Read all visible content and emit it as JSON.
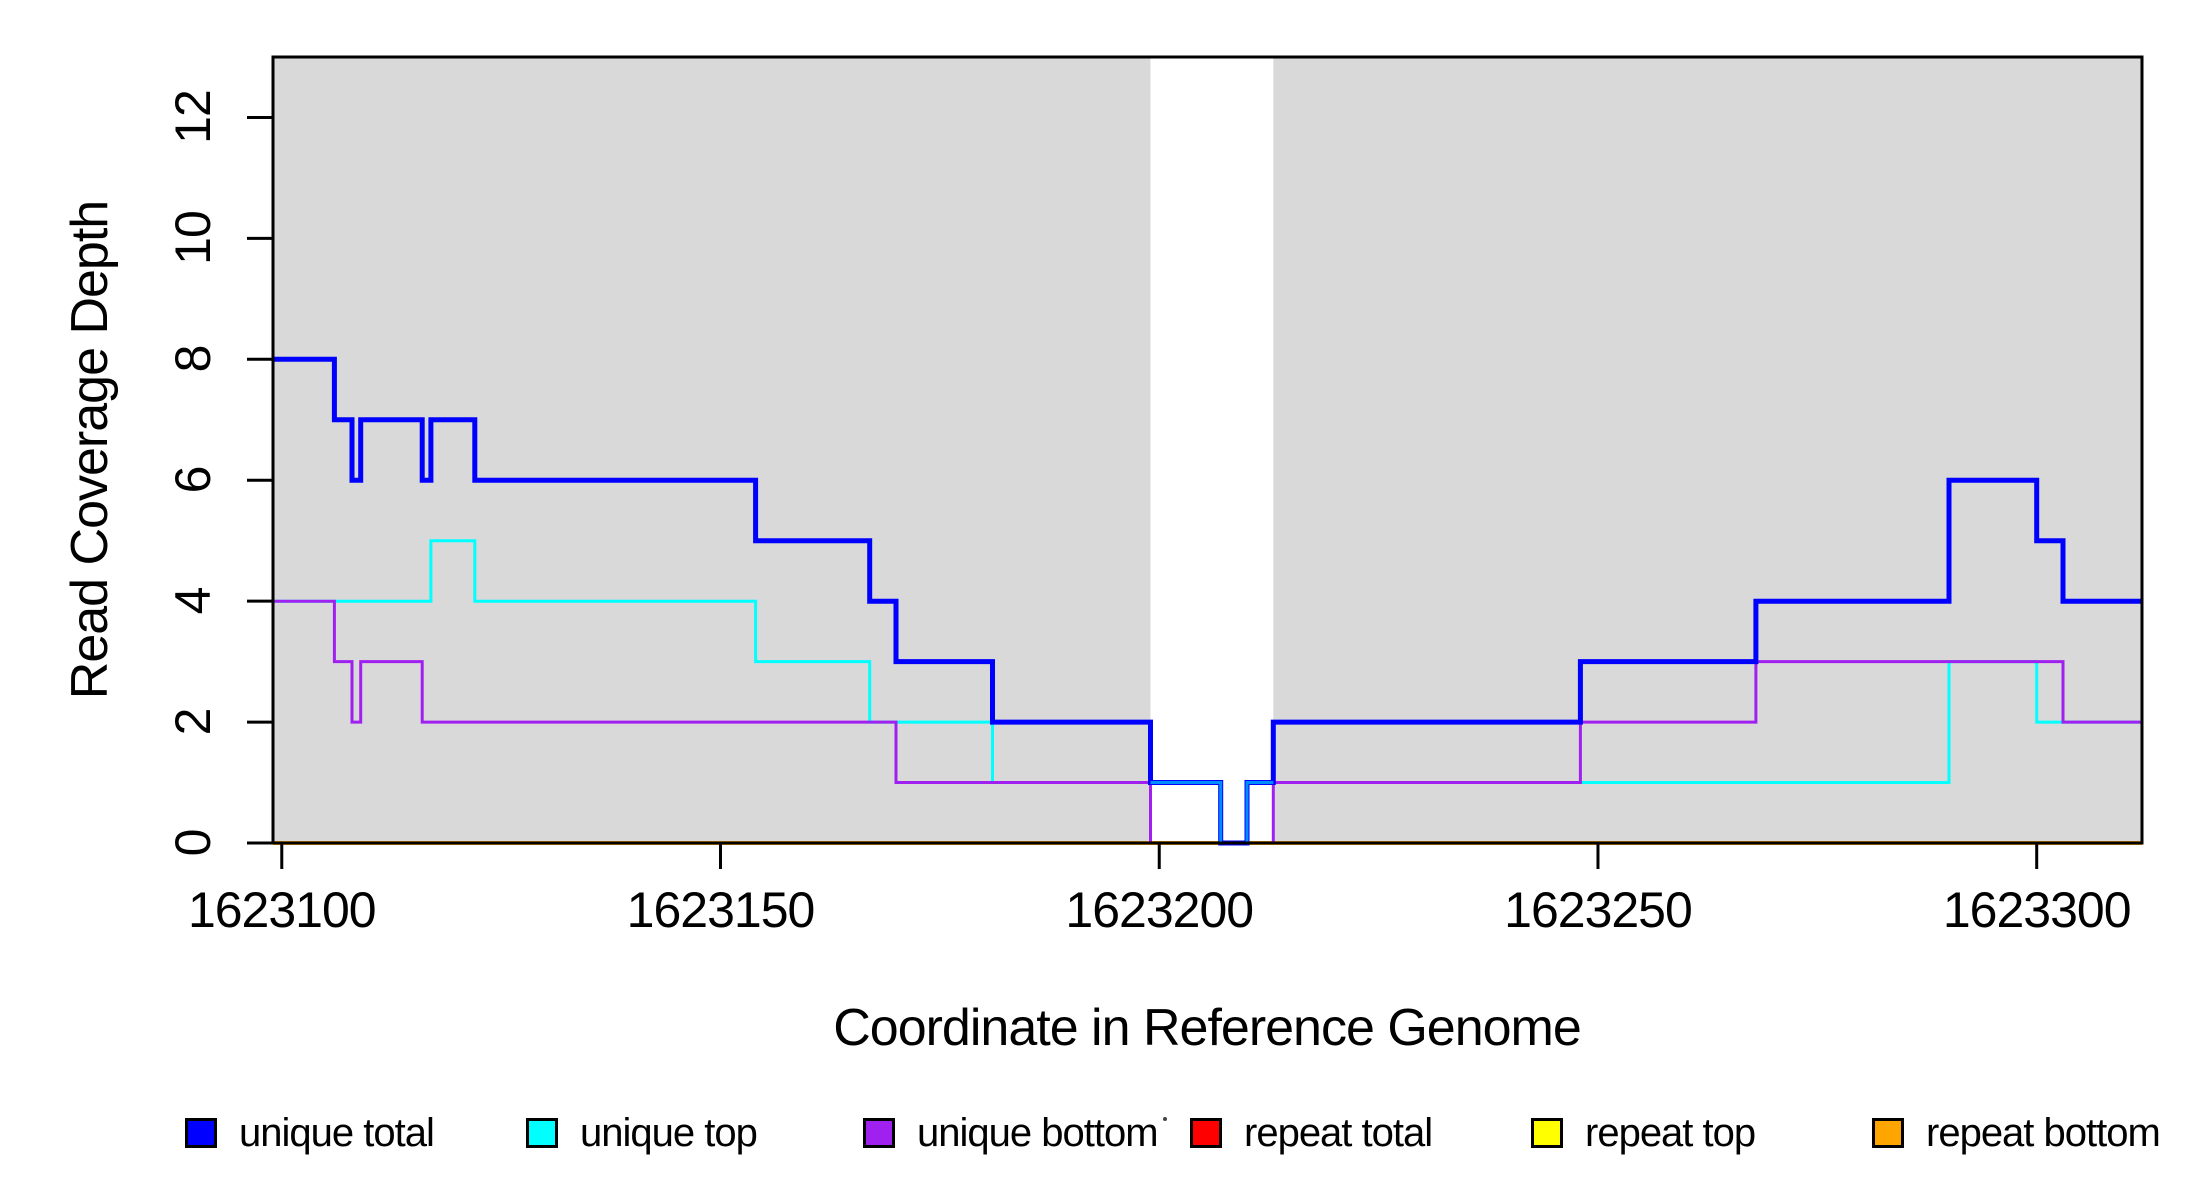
{
  "chart_data": {
    "type": "line",
    "subtype": "step",
    "title": "",
    "xlabel": "Coordinate in Reference Genome",
    "ylabel": "Read Coverage Depth",
    "xlim": [
      1623099,
      1623312
    ],
    "ylim": [
      0,
      13
    ],
    "x_ticks": [
      1623100,
      1623150,
      1623200,
      1623250,
      1623300
    ],
    "y_ticks": [
      0,
      2,
      4,
      6,
      8,
      10,
      12
    ],
    "grid": false,
    "legend_position": "bottom",
    "plot_background": "#FFFFFF",
    "shaded_regions": {
      "color": "#D9D9D9",
      "regions": [
        [
          1623099,
          1623199
        ],
        [
          1623213,
          1623312
        ]
      ],
      "gap_region": [
        1623199,
        1623213
      ]
    },
    "series": [
      {
        "name": "repeat total",
        "color": "#FF0000",
        "lwd": 3,
        "steps": [
          [
            1623099,
            0
          ],
          [
            1623312,
            0
          ]
        ]
      },
      {
        "name": "repeat top",
        "color": "#FFFF00",
        "lwd": 3,
        "steps": [
          [
            1623099,
            0
          ],
          [
            1623312,
            0
          ]
        ]
      },
      {
        "name": "repeat bottom",
        "color": "#FFA500",
        "lwd": 4,
        "steps": [
          [
            1623099,
            0
          ],
          [
            1623312,
            0
          ]
        ]
      },
      {
        "name": "unique top",
        "color": "#00FFFF",
        "lwd": 3,
        "steps": [
          [
            1623099,
            4
          ],
          [
            1623117,
            5
          ],
          [
            1623122,
            4
          ],
          [
            1623154,
            3
          ],
          [
            1623167,
            2
          ],
          [
            1623181,
            1
          ],
          [
            1623207,
            0
          ],
          [
            1623210,
            1
          ],
          [
            1623290,
            3
          ],
          [
            1623300,
            2
          ],
          [
            1623312,
            2
          ]
        ]
      },
      {
        "name": "unique bottom",
        "color": "#A020F0",
        "lwd": 3,
        "steps": [
          [
            1623099,
            4
          ],
          [
            1623106,
            3
          ],
          [
            1623108,
            2
          ],
          [
            1623109,
            3
          ],
          [
            1623116,
            2
          ],
          [
            1623170,
            1
          ],
          [
            1623199,
            0
          ],
          [
            1623213,
            1
          ],
          [
            1623248,
            2
          ],
          [
            1623268,
            3
          ],
          [
            1623303,
            2
          ],
          [
            1623312,
            2
          ]
        ]
      },
      {
        "name": "unique total",
        "color": "#0000FF",
        "lwd": 5,
        "steps": [
          [
            1623099,
            8
          ],
          [
            1623106,
            7
          ],
          [
            1623108,
            6
          ],
          [
            1623109,
            7
          ],
          [
            1623116,
            6
          ],
          [
            1623117,
            7
          ],
          [
            1623122,
            6
          ],
          [
            1623154,
            5
          ],
          [
            1623167,
            4
          ],
          [
            1623170,
            3
          ],
          [
            1623181,
            2
          ],
          [
            1623199,
            1
          ],
          [
            1623207,
            0
          ],
          [
            1623210,
            1
          ],
          [
            1623213,
            2
          ],
          [
            1623248,
            3
          ],
          [
            1623268,
            4
          ],
          [
            1623290,
            6
          ],
          [
            1623300,
            5
          ],
          [
            1623303,
            4
          ],
          [
            1623312,
            4
          ]
        ]
      }
    ],
    "overlap_highlight": {
      "comment": "blue and cyan lines coincide here; rendered as light blue blend",
      "color": "rgba(0,255,255,0.55)",
      "lwd": 3,
      "steps": [
        [
          1623199,
          1
        ],
        [
          1623207,
          0
        ],
        [
          1623210,
          1
        ],
        [
          1623213,
          1
        ]
      ]
    }
  },
  "legend": {
    "items": [
      {
        "label": "unique total",
        "color": "#0000FF"
      },
      {
        "label": "unique top",
        "color": "#00FFFF"
      },
      {
        "label": "unique bottom",
        "color": "#A020F0"
      },
      {
        "label": "repeat total",
        "color": "#FF0000"
      },
      {
        "label": "repeat top",
        "color": "#FFFF00"
      },
      {
        "label": "repeat bottom",
        "color": "#FFA500"
      }
    ]
  }
}
